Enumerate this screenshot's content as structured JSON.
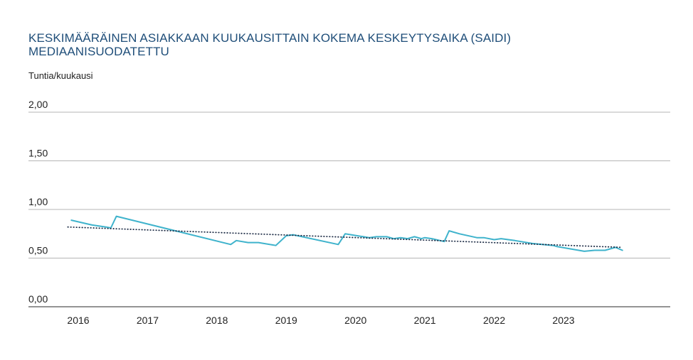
{
  "chart_data": {
    "type": "line",
    "title_line1": "KESKIMÄÄRÄINEN ASIAKKAAN KUUKAUSITTAIN KOKEMA KESKEYTYSAIKA (SAIDI)",
    "title_line2": "MEDIAANISUODATETTU",
    "ylabel": "Tuntia/kuukausi",
    "xlabel": "",
    "ylim": [
      0,
      2
    ],
    "y_ticks": [
      "2,00",
      "1,50",
      "1,00",
      "0,50",
      "0,00"
    ],
    "x_ticks": [
      "2016",
      "2017",
      "2018",
      "2019",
      "2020",
      "2021",
      "2022",
      "2023"
    ],
    "grid": true,
    "series": [
      {
        "color": "#3fb3cc",
        "style": "solid",
        "points": [
          [
            2015.9,
            0.89
          ],
          [
            2016.2,
            0.84
          ],
          [
            2016.4,
            0.82
          ],
          [
            2016.47,
            0.81
          ],
          [
            2016.55,
            0.93
          ],
          [
            2018.2,
            0.64
          ],
          [
            2018.28,
            0.68
          ],
          [
            2018.45,
            0.66
          ],
          [
            2018.6,
            0.66
          ],
          [
            2018.85,
            0.63
          ],
          [
            2019.0,
            0.73
          ],
          [
            2019.1,
            0.74
          ],
          [
            2019.75,
            0.64
          ],
          [
            2019.85,
            0.75
          ],
          [
            2020.2,
            0.71
          ],
          [
            2020.3,
            0.72
          ],
          [
            2020.45,
            0.72
          ],
          [
            2020.55,
            0.7
          ],
          [
            2020.65,
            0.71
          ],
          [
            2020.75,
            0.7
          ],
          [
            2020.85,
            0.72
          ],
          [
            2020.95,
            0.7
          ],
          [
            2021.0,
            0.71
          ],
          [
            2021.1,
            0.7
          ],
          [
            2021.22,
            0.68
          ],
          [
            2021.28,
            0.67
          ],
          [
            2021.35,
            0.78
          ],
          [
            2021.5,
            0.75
          ],
          [
            2021.75,
            0.71
          ],
          [
            2021.85,
            0.71
          ],
          [
            2022.0,
            0.69
          ],
          [
            2022.1,
            0.7
          ],
          [
            2022.3,
            0.68
          ],
          [
            2022.55,
            0.65
          ],
          [
            2022.85,
            0.63
          ],
          [
            2022.9,
            0.62
          ],
          [
            2023.3,
            0.57
          ],
          [
            2023.45,
            0.58
          ],
          [
            2023.6,
            0.58
          ],
          [
            2023.75,
            0.61
          ],
          [
            2023.85,
            0.58
          ]
        ]
      },
      {
        "color": "#1b2a44",
        "style": "dotted",
        "points": [
          [
            2015.85,
            0.82
          ],
          [
            2023.85,
            0.61
          ]
        ]
      }
    ]
  }
}
